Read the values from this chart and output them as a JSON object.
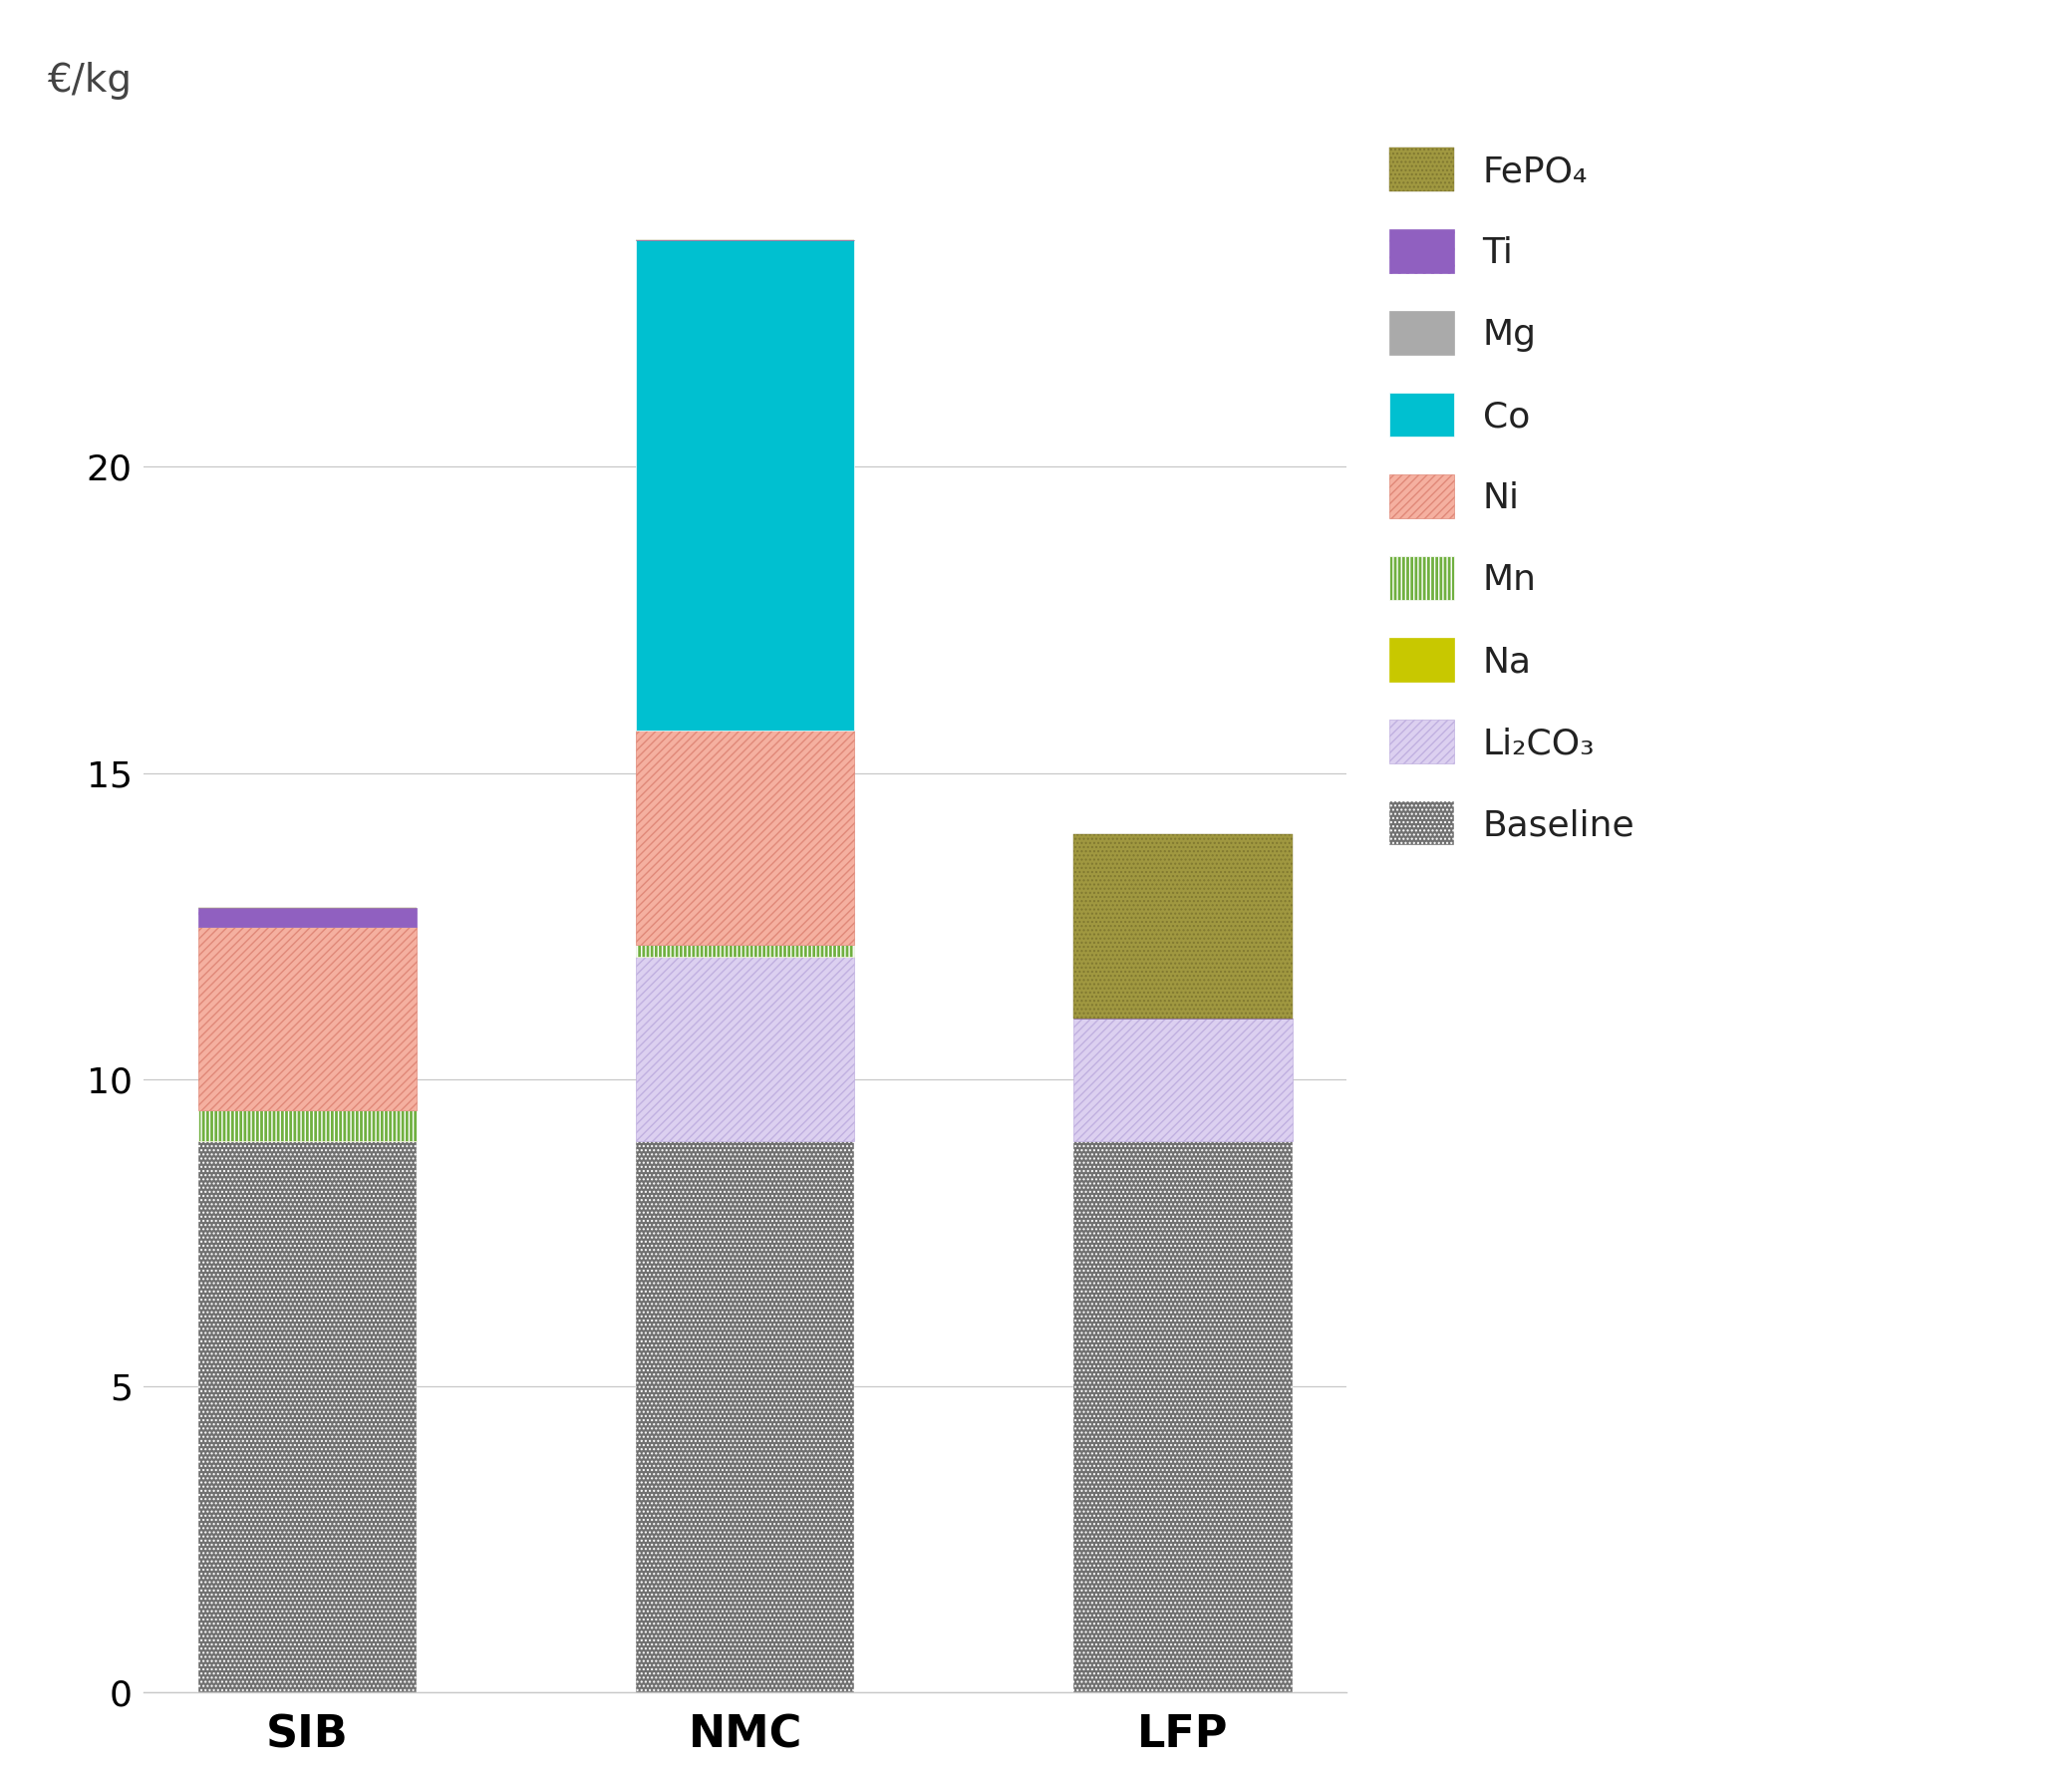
{
  "categories": [
    "SIB",
    "NMC",
    "LFP"
  ],
  "layers": [
    {
      "label": "Baseline",
      "values": [
        9.0,
        9.0,
        9.0
      ],
      "color": "#707070",
      "hatch": "....",
      "edgecolor": "white",
      "linewidth": 0.3
    },
    {
      "label": "Li₂CO₃",
      "values": [
        0.0,
        3.0,
        2.0
      ],
      "color": "#dcd0f0",
      "hatch": "////",
      "edgecolor": "#c0b0e0",
      "linewidth": 0.5
    },
    {
      "label": "Na",
      "values": [
        0.0,
        0.0,
        0.0
      ],
      "color": "#c8c800",
      "hatch": "",
      "edgecolor": "#c8c800",
      "linewidth": 0.5
    },
    {
      "label": "Mn",
      "values": [
        0.5,
        0.2,
        0.0
      ],
      "color": "#70b040",
      "hatch": "||||",
      "edgecolor": "white",
      "linewidth": 0.5
    },
    {
      "label": "Ni",
      "values": [
        3.0,
        3.5,
        0.0
      ],
      "color": "#f5b0a0",
      "hatch": "////",
      "edgecolor": "#e08878",
      "linewidth": 0.5
    },
    {
      "label": "Co",
      "values": [
        0.0,
        8.0,
        0.0
      ],
      "color": "#00c0d0",
      "hatch": "====",
      "edgecolor": "white",
      "linewidth": 0.5
    },
    {
      "label": "Mg",
      "values": [
        0.0,
        0.0,
        0.0
      ],
      "color": "#aaaaaa",
      "hatch": "",
      "edgecolor": "#aaaaaa",
      "linewidth": 0.5
    },
    {
      "label": "Ti",
      "values": [
        0.3,
        0.0,
        0.0
      ],
      "color": "#9060c0",
      "hatch": "..",
      "edgecolor": "#9060c0",
      "linewidth": 0.5
    },
    {
      "label": "FePO₄",
      "values": [
        0.0,
        0.0,
        3.0
      ],
      "color": "#a09840",
      "hatch": "....",
      "edgecolor": "#807830",
      "linewidth": 0.3
    }
  ],
  "euro_label": "€/kg",
  "ylim": [
    0,
    25
  ],
  "yticks": [
    0,
    5,
    10,
    15,
    20
  ],
  "background_color": "#ffffff",
  "bar_width": 0.5,
  "axis_fontsize": 28,
  "tick_fontsize": 26,
  "legend_fontsize": 26,
  "xlabel_fontsize": 32,
  "grid_color": "#c8c8c8"
}
